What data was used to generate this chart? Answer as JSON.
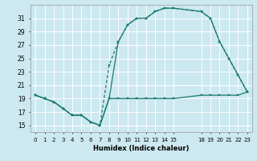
{
  "xlabel": "Humidex (Indice chaleur)",
  "bg_color": "#cce8f0",
  "grid_color": "#ffffff",
  "line_color": "#1a7a6e",
  "xlim": [
    -0.5,
    23.5
  ],
  "ylim": [
    14.0,
    33.0
  ],
  "yticks": [
    15,
    17,
    19,
    21,
    23,
    25,
    27,
    29,
    31
  ],
  "xticks": [
    0,
    1,
    2,
    3,
    4,
    5,
    6,
    7,
    8,
    9,
    10,
    11,
    12,
    13,
    14,
    15,
    18,
    19,
    20,
    21,
    22,
    23
  ],
  "xtick_labels": [
    "0",
    "1",
    "2",
    "3",
    "4",
    "5",
    "6",
    "7",
    "8",
    "9",
    "10",
    "11",
    "12",
    "13",
    "14",
    "15",
    "18",
    "19",
    "20",
    "21",
    "22",
    "23"
  ],
  "curve_min_x": [
    0,
    1,
    2,
    3,
    4,
    5,
    6,
    7,
    8,
    9,
    10,
    11,
    12,
    13,
    14,
    15,
    18,
    19,
    20,
    21,
    22,
    23
  ],
  "curve_min_y": [
    19.5,
    19.0,
    18.5,
    17.5,
    16.5,
    16.5,
    15.5,
    15.0,
    19.0,
    19.0,
    19.0,
    19.0,
    19.0,
    19.0,
    19.0,
    19.0,
    19.5,
    19.5,
    19.5,
    19.5,
    19.5,
    20.0
  ],
  "curve_max_x": [
    0,
    1,
    2,
    3,
    4,
    5,
    6,
    7,
    8,
    9,
    10,
    11,
    12,
    13,
    14,
    15,
    18,
    19,
    20,
    21,
    22,
    23
  ],
  "curve_max_y": [
    19.5,
    19.0,
    18.5,
    17.5,
    16.5,
    16.5,
    15.5,
    15.0,
    19.0,
    27.5,
    30.0,
    31.0,
    31.0,
    32.0,
    32.5,
    32.5,
    32.0,
    31.0,
    27.5,
    25.0,
    22.5,
    20.0
  ],
  "curve_mid_x": [
    0,
    1,
    2,
    3,
    4,
    5,
    6,
    7,
    8,
    9,
    10,
    11,
    12,
    13,
    14,
    15,
    18,
    19,
    20,
    21,
    22,
    23
  ],
  "curve_mid_y": [
    19.5,
    19.0,
    18.5,
    17.5,
    16.5,
    16.5,
    15.5,
    15.0,
    24.0,
    27.5,
    30.0,
    31.0,
    31.0,
    32.0,
    32.5,
    32.5,
    32.0,
    31.0,
    27.5,
    25.0,
    22.5,
    20.0
  ]
}
